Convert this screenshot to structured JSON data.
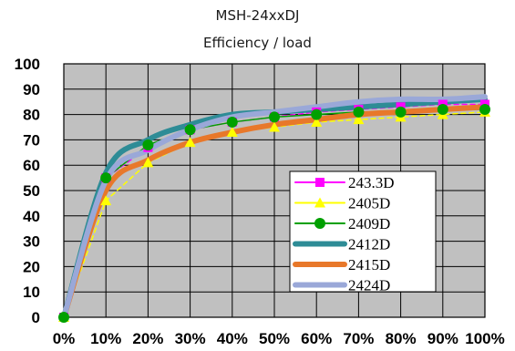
{
  "chart_data": {
    "type": "line",
    "title": "MSH-24xxDJ",
    "subtitle": "Efficiency / load",
    "xlabel": "",
    "ylabel": "",
    "categories": [
      "0%",
      "10%",
      "20%",
      "30%",
      "40%",
      "50%",
      "60%",
      "70%",
      "80%",
      "90%",
      "100%"
    ],
    "x": [
      0,
      10,
      20,
      30,
      40,
      50,
      60,
      70,
      80,
      90,
      100
    ],
    "ylim": [
      0,
      100
    ],
    "yticks": [
      0,
      10,
      20,
      30,
      40,
      50,
      60,
      70,
      80,
      90,
      100
    ],
    "grid": true,
    "legend_position": "bottom-right",
    "series": [
      {
        "name": "243.3D",
        "color": "#ff00ff",
        "marker": "square",
        "values": [
          0,
          55,
          67,
          74,
          77,
          79,
          81,
          82,
          83,
          84,
          84
        ]
      },
      {
        "name": "2405D",
        "color": "#ffff00",
        "marker": "triangle",
        "values": [
          0,
          46,
          61,
          69,
          73,
          75,
          77,
          78,
          79,
          80,
          81
        ]
      },
      {
        "name": "2409D",
        "color": "#00a000",
        "marker": "circle",
        "values": [
          0,
          55,
          68,
          74,
          77,
          79,
          80,
          81,
          81,
          82,
          82
        ]
      },
      {
        "name": "2412D",
        "color": "#2e8c96",
        "marker": "none",
        "values": [
          0,
          57,
          70,
          76,
          80,
          81,
          82,
          83,
          84,
          85,
          86
        ]
      },
      {
        "name": "2415D",
        "color": "#e8782a",
        "marker": "none",
        "values": [
          0,
          50,
          62,
          69,
          73,
          76,
          78,
          80,
          81,
          82,
          83
        ]
      },
      {
        "name": "2424D",
        "color": "#9aa8d8",
        "marker": "none",
        "values": [
          0,
          54,
          66,
          74,
          79,
          81,
          83,
          85,
          86,
          86,
          87
        ]
      }
    ]
  }
}
